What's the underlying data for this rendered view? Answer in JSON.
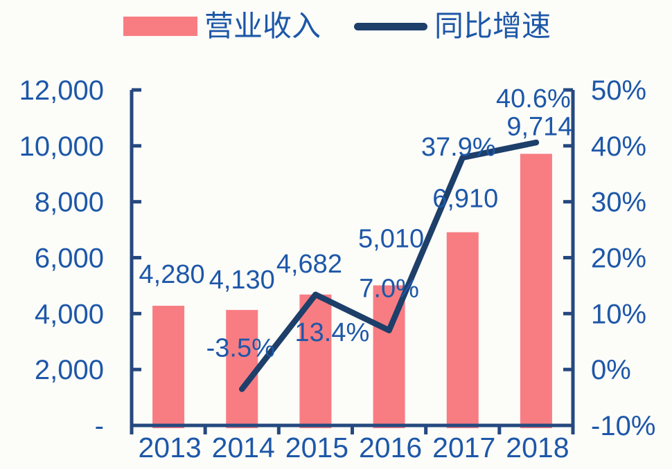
{
  "legend": {
    "items": [
      {
        "label": "营业收入",
        "type": "bar",
        "color": "#f87d82"
      },
      {
        "label": "同比增速",
        "type": "line",
        "color": "#1d3f69"
      }
    ]
  },
  "chart_data": {
    "type": "combo-bar-line",
    "title": "",
    "categories": [
      "2013",
      "2014",
      "2015",
      "2016",
      "2017",
      "2018"
    ],
    "series": [
      {
        "name": "营业收入",
        "type": "bar",
        "axis": "left",
        "color": "#f87d82",
        "values": [
          4280,
          4130,
          4682,
          5010,
          6910,
          9714
        ],
        "labels": [
          "4,280",
          "4,130",
          "4,682",
          "5,010",
          "6,910",
          "9,714"
        ]
      },
      {
        "name": "同比增速",
        "type": "line",
        "axis": "right",
        "color": "#1d3f69",
        "values": [
          null,
          -3.5,
          13.4,
          7.0,
          37.9,
          40.6
        ],
        "labels": [
          null,
          "-3.5%",
          "13.4%",
          "7.0%",
          "37.9%",
          "40.6%"
        ]
      }
    ],
    "left_axis": {
      "min": 0,
      "max": 12000,
      "tick_labels": [
        "-",
        "2,000",
        "4,000",
        "6,000",
        "8,000",
        "10,000",
        "12,000"
      ]
    },
    "right_axis": {
      "min": -10,
      "max": 50,
      "tick_labels": [
        "-10%",
        "0%",
        "10%",
        "20%",
        "30%",
        "40%",
        "50%"
      ]
    },
    "grid": false,
    "legend_position": "top",
    "colors": {
      "text": "#1d57a8",
      "axis": "#25497f"
    }
  }
}
